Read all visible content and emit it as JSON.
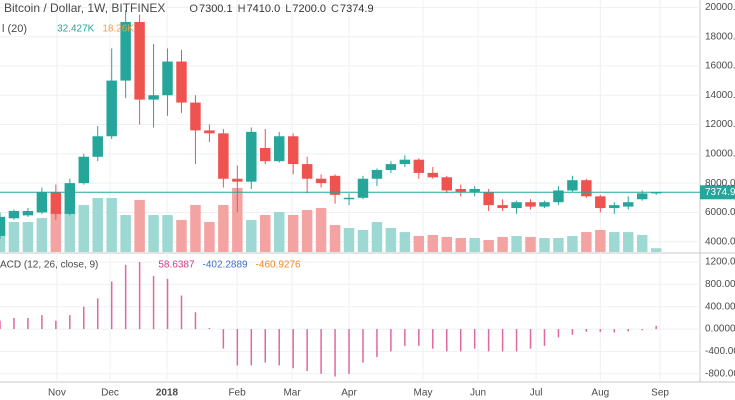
{
  "chart_data": {
    "type": "candlestick",
    "title": "Bitcoin / Dollar, 1W, BITFINEX",
    "ohlc_legend": [
      {
        "label": "O",
        "value": "7300.1"
      },
      {
        "label": "H",
        "value": "7410.0"
      },
      {
        "label": "L",
        "value": "7200.0"
      },
      {
        "label": "C",
        "value": "7374.9"
      }
    ],
    "up_color": "#26a69a",
    "down_color": "#ef5350",
    "open": [
      4400,
      5600,
      5800,
      6000,
      7400,
      5900,
      8000,
      9800,
      11200,
      15000,
      19000,
      13700,
      14000,
      16300,
      13500,
      11600,
      11400,
      8300,
      8100,
      10400,
      9500,
      11200,
      9300,
      8300,
      8500,
      6900,
      7000,
      8300,
      8900,
      9300,
      9600,
      8700,
      8400,
      7600,
      7400,
      7400,
      6500,
      6300,
      6700,
      6400,
      6700,
      7500,
      8200,
      7100,
      6300,
      6400,
      6900,
      7300.1
    ],
    "high": [
      6000,
      6200,
      6300,
      7700,
      7900,
      8300,
      10000,
      11900,
      17200,
      19800,
      19500,
      17500,
      17200,
      17100,
      14000,
      12000,
      11700,
      9200,
      11800,
      11700,
      11500,
      11400,
      9800,
      8600,
      8600,
      7300,
      8500,
      9000,
      9500,
      9900,
      9700,
      9100,
      8500,
      7900,
      7800,
      7600,
      6900,
      6800,
      6900,
      6800,
      7800,
      8500,
      8300,
      7200,
      6700,
      7100,
      7500,
      7410.0
    ],
    "low": [
      4200,
      5500,
      5700,
      5900,
      5500,
      5800,
      7900,
      9500,
      11000,
      13800,
      12000,
      11800,
      12600,
      12800,
      9300,
      10800,
      7700,
      6000,
      7600,
      9300,
      9400,
      8600,
      7300,
      7700,
      6600,
      6500,
      6900,
      7800,
      8700,
      9100,
      8300,
      8300,
      7300,
      7100,
      7100,
      6100,
      6100,
      5900,
      6200,
      6300,
      6500,
      7400,
      7000,
      6000,
      5900,
      6200,
      6800,
      7200.0
    ],
    "close": [
      5700,
      6100,
      6100,
      7400,
      5900,
      8000,
      9800,
      11200,
      15000,
      19000,
      13700,
      14000,
      16300,
      13500,
      11600,
      11400,
      8300,
      8100,
      11500,
      9500,
      11200,
      9300,
      8300,
      8000,
      7200,
      7000,
      8300,
      8900,
      9300,
      9600,
      8700,
      8400,
      7500,
      7400,
      7600,
      6500,
      6300,
      6700,
      6400,
      6700,
      7500,
      8200,
      7100,
      6300,
      6500,
      6700,
      7300,
      7374.9
    ],
    "xlim": [
      0,
      50.14
    ],
    "ylim": [
      3300,
      20500
    ],
    "yticks": [
      {
        "value": 20000,
        "label": "20000.0"
      },
      {
        "value": 18000,
        "label": "18000.0"
      },
      {
        "value": 16000,
        "label": "16000.0"
      },
      {
        "value": 14000,
        "label": "14000.0"
      },
      {
        "value": 12000,
        "label": "12000.0"
      },
      {
        "value": 10000,
        "label": "10000.0"
      },
      {
        "value": 8000,
        "label": "8000.0"
      },
      {
        "value": 6000,
        "label": "6000.0"
      },
      {
        "value": 4000,
        "label": "4000.0"
      }
    ],
    "xticks": [
      {
        "value": 4.08,
        "label": "Nov"
      },
      {
        "value": 7.88,
        "label": "Dec"
      },
      {
        "value": 11.96,
        "label": "2018"
      },
      {
        "value": 16.98,
        "label": "Feb"
      },
      {
        "value": 20.92,
        "label": "Mar"
      },
      {
        "value": 25.0,
        "label": "Apr"
      },
      {
        "value": 30.3,
        "label": "May"
      },
      {
        "value": 34.24,
        "label": "Jun"
      },
      {
        "value": 38.4,
        "label": "Jul"
      },
      {
        "value": 43.0,
        "label": "Aug"
      },
      {
        "value": 47.28,
        "label": "Sep"
      }
    ],
    "last_price": {
      "value": 7374.9,
      "label": "7374.9"
    },
    "grid": true,
    "volume": {
      "legend": "l (20)",
      "legend_values": [
        "32.427K",
        "18.26K"
      ],
      "up_color": "#9ed8d2",
      "down_color": "#f3a3a1",
      "ylim": [
        0,
        600
      ],
      "values": [
        257,
        257,
        257,
        291,
        343,
        343,
        403,
        463,
        463,
        317,
        446,
        317,
        317,
        274,
        403,
        257,
        403,
        549,
        274,
        317,
        343,
        317,
        360,
        377,
        231,
        206,
        189,
        257,
        206,
        171,
        137,
        146,
        129,
        120,
        120,
        103,
        129,
        137,
        129,
        120,
        120,
        137,
        171,
        189,
        171,
        171,
        146,
        32.427
      ]
    },
    "macd": {
      "legend": "ACD (12, 26, close, 9)",
      "legend_values": [
        "58.6387",
        "-402.2889",
        "-460.9276"
      ],
      "legend_colors": [
        "#d6398a",
        "#3f6fc9",
        "#f08a1c"
      ],
      "color": "#e0679f",
      "ylim": [
        -1090,
        1325
      ],
      "yticks": [
        {
          "value": 1200,
          "label": "1200.000"
        },
        {
          "value": 800,
          "label": "800.000"
        },
        {
          "value": 400,
          "label": "400.000"
        },
        {
          "value": 0,
          "label": "0.0000"
        },
        {
          "value": -400,
          "label": "-400.000"
        },
        {
          "value": -800,
          "label": "-800.000"
        }
      ],
      "values": [
        150,
        200,
        200,
        250,
        150,
        250,
        400,
        550,
        850,
        1150,
        1200,
        950,
        900,
        600,
        300,
        20,
        -350,
        -650,
        -650,
        -600,
        -650,
        -700,
        -750,
        -800,
        -850,
        -800,
        -600,
        -500,
        -400,
        -300,
        -300,
        -350,
        -400,
        -400,
        -350,
        -400,
        -400,
        -400,
        -350,
        -300,
        -150,
        -100,
        -50,
        -50,
        -60,
        -40,
        -20,
        58.6387
      ]
    }
  }
}
